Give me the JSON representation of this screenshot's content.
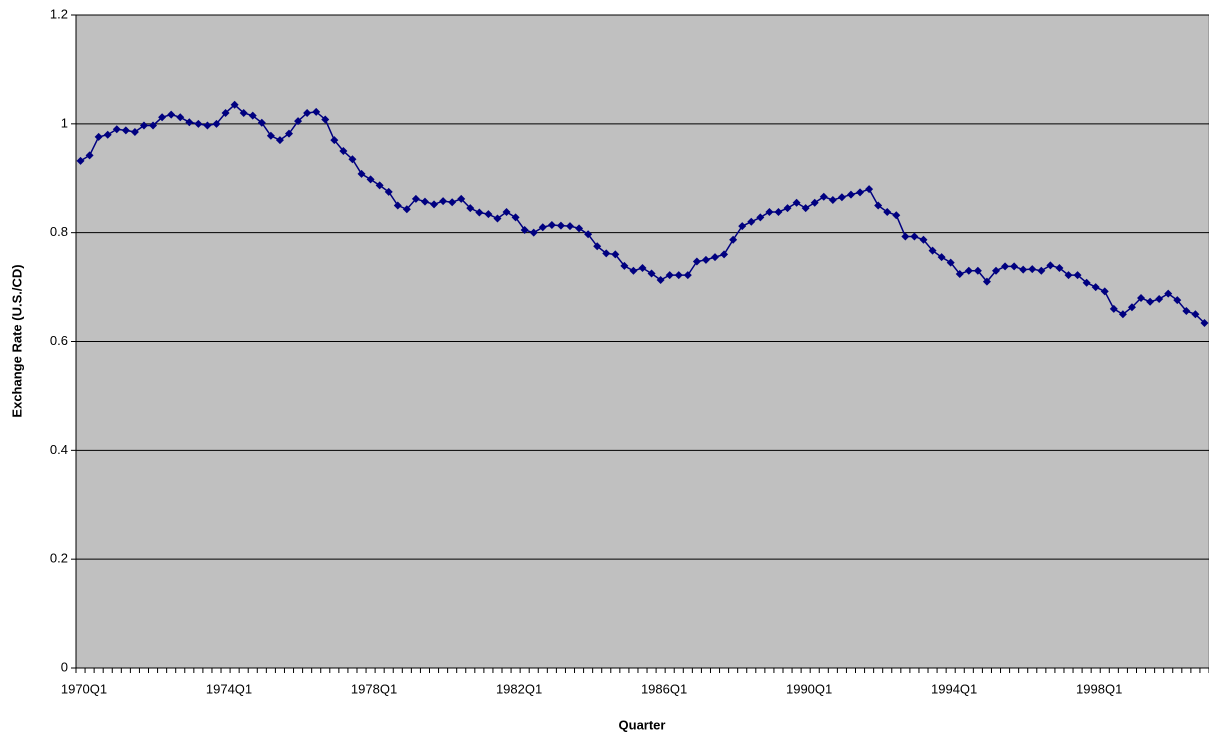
{
  "chart_data": {
    "type": "line",
    "x_label": "Quarter",
    "y_label": "Exchange Rate (U.S./CD)",
    "categories": [
      "1970Q1",
      null,
      null,
      null,
      null,
      null,
      null,
      null,
      null,
      null,
      null,
      null,
      null,
      null,
      null,
      null,
      "1974Q1",
      null,
      null,
      null,
      null,
      null,
      null,
      null,
      null,
      null,
      null,
      null,
      null,
      null,
      null,
      null,
      "1978Q1",
      null,
      null,
      null,
      null,
      null,
      null,
      null,
      null,
      null,
      null,
      null,
      null,
      null,
      null,
      null,
      "1982Q1",
      null,
      null,
      null,
      null,
      null,
      null,
      null,
      null,
      null,
      null,
      null,
      null,
      null,
      null,
      null,
      "1986Q1",
      null,
      null,
      null,
      null,
      null,
      null,
      null,
      null,
      null,
      null,
      null,
      null,
      null,
      null,
      null,
      "1990Q1",
      null,
      null,
      null,
      null,
      null,
      null,
      null,
      null,
      null,
      null,
      null,
      null,
      null,
      null,
      null,
      "1994Q1",
      null,
      null,
      null,
      null,
      null,
      null,
      null,
      null,
      null,
      null,
      null,
      null,
      null,
      null,
      null,
      "1998Q1",
      null,
      null,
      null,
      null,
      null,
      null,
      null,
      null,
      null,
      null,
      null,
      null
    ],
    "series": [
      {
        "color": "#000080",
        "values": [
          0.932,
          0.942,
          0.976,
          0.98,
          0.99,
          0.988,
          0.985,
          0.997,
          0.997,
          1.012,
          1.017,
          1.012,
          1.003,
          1.0,
          0.997,
          1.0,
          1.02,
          1.035,
          1.02,
          1.015,
          1.002,
          0.978,
          0.97,
          0.982,
          1.005,
          1.02,
          1.022,
          1.008,
          0.97,
          0.95,
          0.935,
          0.908,
          0.898,
          0.887,
          0.875,
          0.85,
          0.843,
          0.862,
          0.857,
          0.852,
          0.858,
          0.856,
          0.862,
          0.845,
          0.837,
          0.834,
          0.826,
          0.838,
          0.828,
          0.805,
          0.8,
          0.81,
          0.814,
          0.813,
          0.812,
          0.808,
          0.797,
          0.775,
          0.762,
          0.76,
          0.739,
          0.73,
          0.735,
          0.725,
          0.713,
          0.722,
          0.722,
          0.722,
          0.747,
          0.75,
          0.755,
          0.76,
          0.787,
          0.812,
          0.82,
          0.828,
          0.838,
          0.838,
          0.845,
          0.855,
          0.845,
          0.855,
          0.866,
          0.86,
          0.865,
          0.87,
          0.874,
          0.88,
          0.85,
          0.838,
          0.832,
          0.793,
          0.793,
          0.787,
          0.767,
          0.755,
          0.745,
          0.724,
          0.73,
          0.73,
          0.71,
          0.73,
          0.738,
          0.738,
          0.732,
          0.733,
          0.73,
          0.74,
          0.735,
          0.722,
          0.722,
          0.708,
          0.7,
          0.692,
          0.66,
          0.65,
          0.663,
          0.68,
          0.673,
          0.678,
          0.688,
          0.676,
          0.656,
          0.65,
          0.634
        ]
      }
    ],
    "ylim": [
      0,
      1.2
    ],
    "yticks": [
      0,
      0.2,
      0.4,
      0.6,
      0.8,
      1,
      1.2
    ],
    "grid": true,
    "plot_background": "#c0c0c0"
  }
}
